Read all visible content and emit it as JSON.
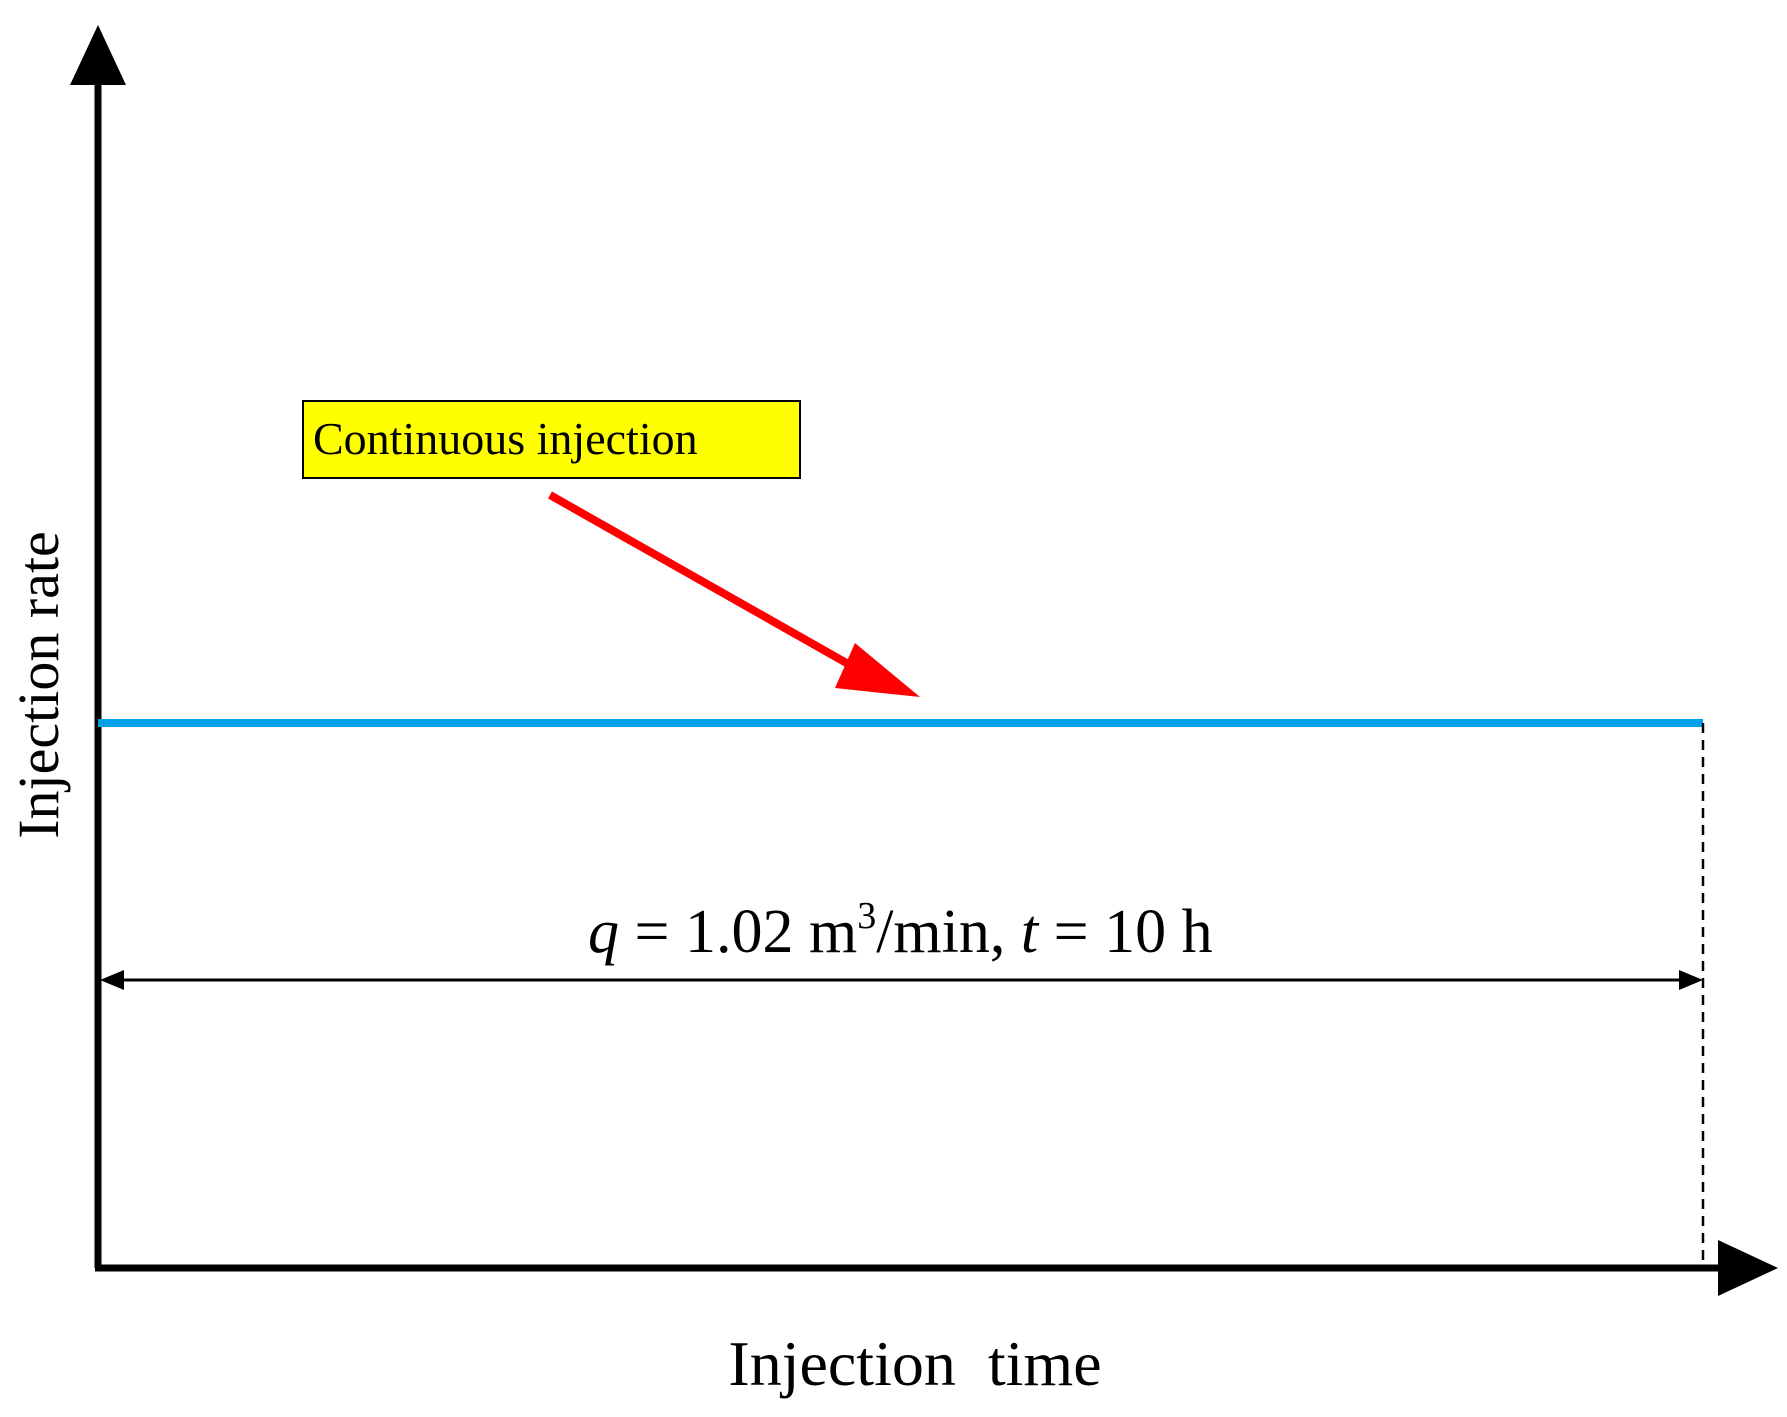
{
  "diagram": {
    "y_axis_label": "Injection rate",
    "x_axis_label": "Injection  time",
    "callout": {
      "label": "Continuous injection",
      "fill_color": "#ffff00",
      "arrow_color": "#ff0000"
    },
    "rate_line": {
      "color": "#00a0e9"
    },
    "annotation": {
      "q_symbol": "q",
      "eq1": " = 1.02 m",
      "superscript": "3",
      "unit_rest": "/min, ",
      "t_symbol": "t",
      "eq2": " = 10 h"
    },
    "axis_color": "#000000"
  }
}
